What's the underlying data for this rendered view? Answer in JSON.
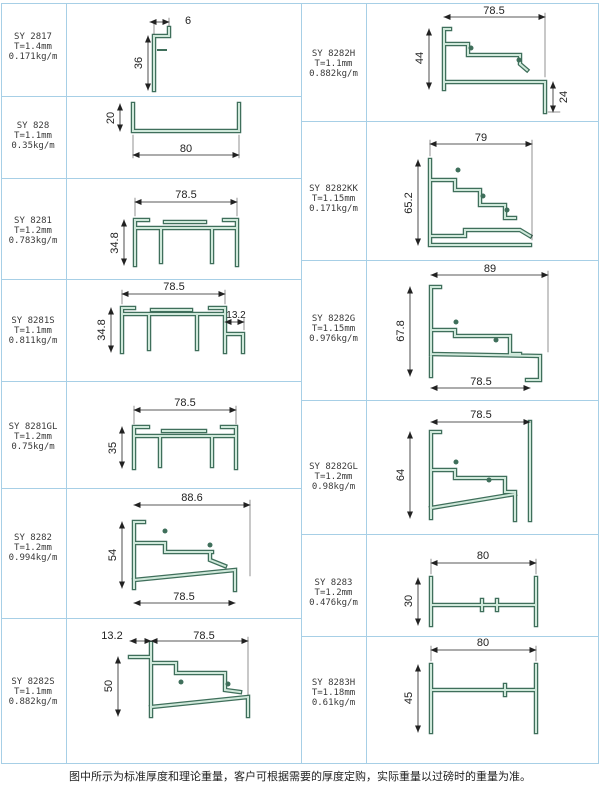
{
  "profiles": [
    {
      "code": "SY 2817",
      "thickness": "T=1.4mm",
      "weight": "0.171kg/m",
      "dims": [
        "6",
        "36"
      ]
    },
    {
      "code": "SY 828",
      "thickness": "T=1.1mm",
      "weight": "0.35kg/m",
      "dims": [
        "20",
        "80"
      ]
    },
    {
      "code": "SY 8281",
      "thickness": "T=1.2mm",
      "weight": "0.783kg/m",
      "dims": [
        "78.5",
        "34.8"
      ]
    },
    {
      "code": "SY 8281S",
      "thickness": "T=1.1mm",
      "weight": "0.811kg/m",
      "dims": [
        "78.5",
        "34.8",
        "13.2"
      ]
    },
    {
      "code": "SY 8281GL",
      "thickness": "T=1.2mm",
      "weight": "0.75kg/m",
      "dims": [
        "78.5",
        "35"
      ]
    },
    {
      "code": "SY 8282",
      "thickness": "T=1.2mm",
      "weight": "0.994kg/m",
      "dims": [
        "88.6",
        "54",
        "78.5"
      ]
    },
    {
      "code": "SY 8282S",
      "thickness": "T=1.1mm",
      "weight": "0.882kg/m",
      "dims": [
        "13.2",
        "78.5",
        "50"
      ]
    },
    {
      "code": "SY 8282H",
      "thickness": "T=1.1mm",
      "weight": "0.882kg/m",
      "dims": [
        "78.5",
        "44",
        "24"
      ]
    },
    {
      "code": "SY 8282KK",
      "thickness": "T=1.15mm",
      "weight": "0.171kg/m",
      "dims": [
        "79",
        "65.2"
      ]
    },
    {
      "code": "SY 8282G",
      "thickness": "T=1.15mm",
      "weight": "0.976kg/m",
      "dims": [
        "89",
        "67.8",
        "78.5"
      ]
    },
    {
      "code": "SY 8282GL",
      "thickness": "T=1.2mm",
      "weight": "0.98kg/m",
      "dims": [
        "78.5",
        "64"
      ]
    },
    {
      "code": "SY 8283",
      "thickness": "T=1.2mm",
      "weight": "0.476kg/m",
      "dims": [
        "80",
        "30"
      ]
    },
    {
      "code": "SY 8283H",
      "thickness": "T=1.18mm",
      "weight": "0.61kg/m",
      "dims": [
        "80",
        "45"
      ]
    }
  ],
  "footer": "图中所示为标准厚度和理论重量，客户可根据需要的厚度定购，实际重量以过磅时的重量为准。"
}
